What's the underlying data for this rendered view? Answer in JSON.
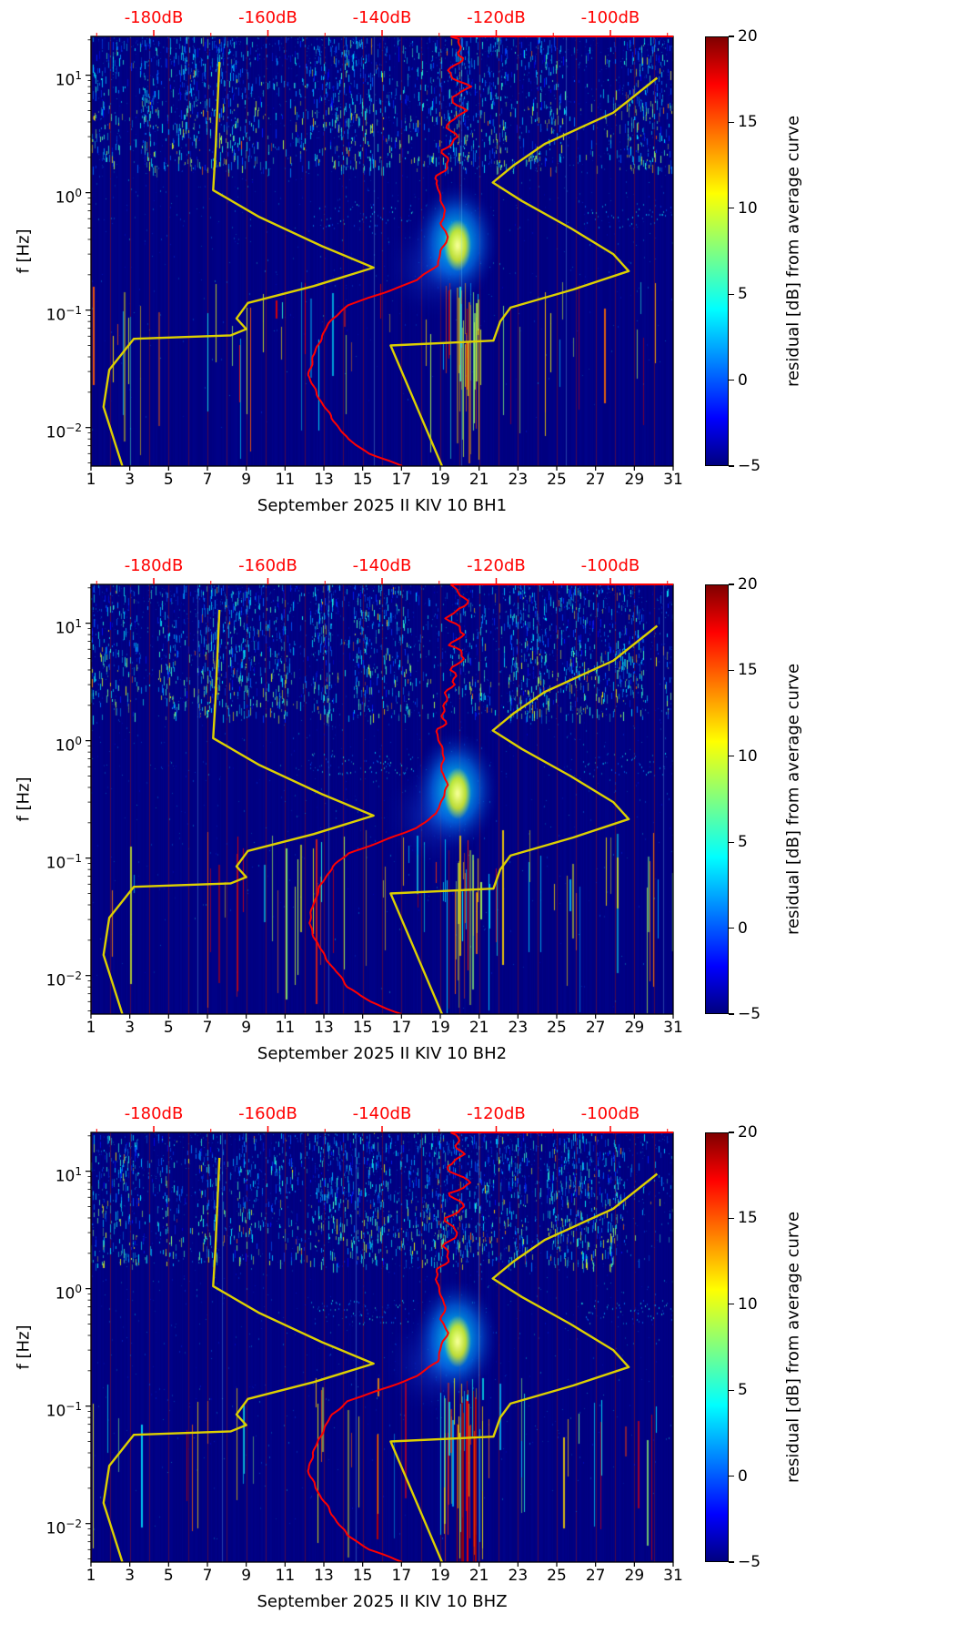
{
  "figure": {
    "background": "#ffffff",
    "panel_count": 3
  },
  "axes_shared": {
    "ylabel": "f [Hz]",
    "y_tick_exponents": [
      1,
      0,
      -1,
      -2
    ],
    "y_tick_labels": [
      "10¹",
      "10⁰",
      "10⁻¹",
      "10⁻²"
    ],
    "y_range_hz": [
      0.0047,
      21.4
    ],
    "x_tick_days": [
      1,
      3,
      5,
      7,
      9,
      11,
      13,
      15,
      17,
      19,
      21,
      23,
      25,
      27,
      29,
      31
    ],
    "x_range_days": [
      1,
      31
    ],
    "top_axis": {
      "color": "#ff0000",
      "tick_labels": [
        "-180dB",
        "-160dB",
        "-140dB",
        "-120dB",
        "-100dB"
      ],
      "tick_values_db": [
        -180,
        -160,
        -140,
        -120,
        -100
      ],
      "minor_step_db": 10,
      "range_db": [
        -191,
        -89
      ],
      "top_edge_red_start_db": -128
    },
    "colorbar": {
      "label": "residual [dB] from average curve",
      "tick_labels": [
        "20",
        "15",
        "10",
        "5",
        "0",
        "−5"
      ],
      "tick_values": [
        20,
        15,
        10,
        5,
        0,
        -5
      ],
      "range": [
        -5,
        20
      ],
      "colormap": "jet"
    }
  },
  "curves": {
    "noise_model_color": "#ddd000",
    "average_color": "#ff0000",
    "low_noise_model_f_db": [
      [
        13,
        -168.5
      ],
      [
        2.2,
        -169.2
      ],
      [
        1.05,
        -169.6
      ],
      [
        0.62,
        -161.5
      ],
      [
        0.35,
        -150.5
      ],
      [
        0.23,
        -141.5
      ],
      [
        0.16,
        -152
      ],
      [
        0.115,
        -163.5
      ],
      [
        0.085,
        -165.5
      ],
      [
        0.069,
        -163.8
      ],
      [
        0.061,
        -166.5
      ],
      [
        0.057,
        -183.5
      ],
      [
        0.031,
        -187.8
      ],
      [
        0.015,
        -188.8
      ],
      [
        0.0047,
        -185.5
      ]
    ],
    "high_noise_model_f_db": [
      [
        9.5,
        -91.8
      ],
      [
        4.8,
        -99.5
      ],
      [
        2.6,
        -111.5
      ],
      [
        1.7,
        -117
      ],
      [
        1.22,
        -120.6
      ],
      [
        0.85,
        -115.5
      ],
      [
        0.5,
        -107
      ],
      [
        0.3,
        -99.5
      ],
      [
        0.215,
        -96.8
      ],
      [
        0.15,
        -106.5
      ],
      [
        0.105,
        -117.5
      ],
      [
        0.08,
        -119.3
      ],
      [
        0.055,
        -120.5
      ],
      [
        0.05,
        -138.5
      ],
      [
        0.0047,
        -129.5
      ]
    ],
    "average_psd_f_db": [
      [
        21.4,
        -89
      ],
      [
        21.4,
        -128
      ],
      [
        14,
        -125.5
      ],
      [
        11,
        -128
      ],
      [
        8,
        -125
      ],
      [
        6.5,
        -128.5
      ],
      [
        5,
        -126
      ],
      [
        4,
        -128
      ],
      [
        3,
        -126.5
      ],
      [
        2.3,
        -129
      ],
      [
        1.7,
        -129.5
      ],
      [
        1.2,
        -130.5
      ],
      [
        0.9,
        -129.5
      ],
      [
        0.7,
        -129
      ],
      [
        0.55,
        -129.8
      ],
      [
        0.42,
        -128.6
      ],
      [
        0.32,
        -129.5
      ],
      [
        0.24,
        -130.2
      ],
      [
        0.18,
        -134
      ],
      [
        0.14,
        -140
      ],
      [
        0.11,
        -146
      ],
      [
        0.085,
        -148.5
      ],
      [
        0.06,
        -150.5
      ],
      [
        0.04,
        -152.3
      ],
      [
        0.028,
        -152.8
      ],
      [
        0.018,
        -151
      ],
      [
        0.012,
        -149
      ],
      [
        0.008,
        -146
      ],
      [
        0.006,
        -142
      ],
      [
        0.0047,
        -136.5
      ]
    ]
  },
  "chart_data": [
    {
      "type": "heatmap",
      "panel": "BH1",
      "xlabel": "September 2025 II KIV 10 BH1",
      "ylabel": "f [Hz]",
      "x_axis": {
        "unit": "day of September 2025",
        "tick_labels": [
          1,
          3,
          5,
          7,
          9,
          11,
          13,
          15,
          17,
          19,
          21,
          23,
          25,
          27,
          29,
          31
        ],
        "range": [
          1,
          31
        ]
      },
      "y_axis": {
        "unit": "Hz",
        "scale": "log",
        "tick_labels": [
          "10¹",
          "10⁰",
          "10⁻¹",
          "10⁻²"
        ],
        "range_hz": [
          0.0047,
          21.4
        ]
      },
      "top_axis": {
        "tick_labels": [
          "-180dB",
          "-160dB",
          "-140dB",
          "-120dB",
          "-100dB"
        ],
        "color": "#ff0000"
      },
      "colorbar": {
        "label": "residual [dB] from average curve",
        "tick_labels": [
          "20",
          "15",
          "10",
          "5",
          "0",
          "−5"
        ],
        "range": [
          -5,
          20
        ],
        "colormap": "jet"
      },
      "series": [
        {
          "name": "low noise model",
          "color": "#ddd000",
          "points_ref": "curves.low_noise_model_f_db"
        },
        {
          "name": "high noise model",
          "color": "#ddd000",
          "points_ref": "curves.high_noise_model_f_db"
        },
        {
          "name": "station average PSD",
          "color": "#ff0000",
          "points_ref": "curves.average_psd_f_db"
        }
      ],
      "features": {
        "event_day": 19.8,
        "event_f_hz": 0.38,
        "mid_band_day_ranges": [
          [
            12.3,
            17.6
          ],
          [
            26.3,
            31
          ]
        ],
        "strong_low_freq_red_cluster": false
      }
    },
    {
      "type": "heatmap",
      "panel": "BH2",
      "xlabel": "September 2025 II KIV 10 BH2",
      "ylabel": "f [Hz]",
      "x_axis": {
        "unit": "day of September 2025",
        "tick_labels": [
          1,
          3,
          5,
          7,
          9,
          11,
          13,
          15,
          17,
          19,
          21,
          23,
          25,
          27,
          29,
          31
        ],
        "range": [
          1,
          31
        ]
      },
      "y_axis": {
        "unit": "Hz",
        "scale": "log",
        "tick_labels": [
          "10¹",
          "10⁰",
          "10⁻¹",
          "10⁻²"
        ],
        "range_hz": [
          0.0047,
          21.4
        ]
      },
      "top_axis": {
        "tick_labels": [
          "-180dB",
          "-160dB",
          "-140dB",
          "-120dB",
          "-100dB"
        ],
        "color": "#ff0000"
      },
      "colorbar": {
        "label": "residual [dB] from average curve",
        "tick_labels": [
          "20",
          "15",
          "10",
          "5",
          "0",
          "−5"
        ],
        "range": [
          -5,
          20
        ],
        "colormap": "jet"
      },
      "series": [
        {
          "name": "low noise model",
          "color": "#ddd000",
          "points_ref": "curves.low_noise_model_f_db"
        },
        {
          "name": "high noise model",
          "color": "#ddd000",
          "points_ref": "curves.high_noise_model_f_db"
        },
        {
          "name": "station average PSD",
          "color": "#ff0000",
          "points_ref": "curves.average_psd_f_db"
        }
      ],
      "features": {
        "event_day": 19.8,
        "event_f_hz": 0.38,
        "mid_band_day_ranges": [
          [
            12.3,
            17.6
          ],
          [
            26.3,
            31
          ]
        ],
        "strong_low_freq_red_cluster": false
      }
    },
    {
      "type": "heatmap",
      "panel": "BHZ",
      "xlabel": "September 2025 II KIV 10 BHZ",
      "ylabel": "f [Hz]",
      "x_axis": {
        "unit": "day of September 2025",
        "tick_labels": [
          1,
          3,
          5,
          7,
          9,
          11,
          13,
          15,
          17,
          19,
          21,
          23,
          25,
          27,
          29,
          31
        ],
        "range": [
          1,
          31
        ]
      },
      "y_axis": {
        "unit": "Hz",
        "scale": "log",
        "tick_labels": [
          "10¹",
          "10⁰",
          "10⁻¹",
          "10⁻²"
        ],
        "range_hz": [
          0.0047,
          21.4
        ]
      },
      "top_axis": {
        "tick_labels": [
          "-180dB",
          "-160dB",
          "-140dB",
          "-120dB",
          "-100dB"
        ],
        "color": "#ff0000"
      },
      "colorbar": {
        "label": "residual [dB] from average curve",
        "tick_labels": [
          "20",
          "15",
          "10",
          "5",
          "0",
          "−5"
        ],
        "range": [
          -5,
          20
        ],
        "colormap": "jet"
      },
      "series": [
        {
          "name": "low noise model",
          "color": "#ddd000",
          "points_ref": "curves.low_noise_model_f_db"
        },
        {
          "name": "high noise model",
          "color": "#ddd000",
          "points_ref": "curves.high_noise_model_f_db"
        },
        {
          "name": "station average PSD",
          "color": "#ff0000",
          "points_ref": "curves.average_psd_f_db"
        }
      ],
      "features": {
        "event_day": 19.8,
        "event_f_hz": 0.38,
        "mid_band_day_ranges": [
          [
            12.3,
            17.6
          ],
          [
            26.3,
            31
          ]
        ],
        "strong_low_freq_red_cluster": true
      }
    }
  ]
}
